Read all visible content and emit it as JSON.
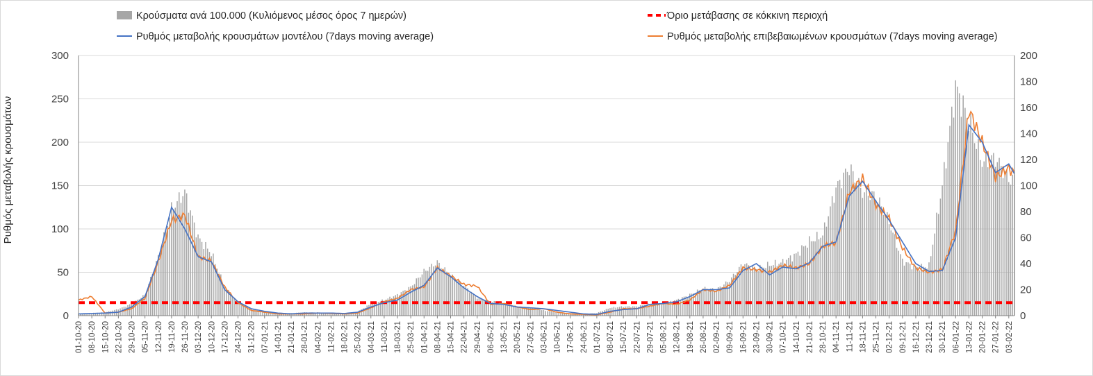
{
  "chart_data": {
    "type": "bar",
    "y_axis_title": "Ρυθμός μεταβολής κρουσμάτων",
    "left_axis": {
      "ylim": [
        0,
        300
      ],
      "ticks": [
        "0",
        "50",
        "100",
        "150",
        "200",
        "250",
        "300"
      ]
    },
    "right_axis": {
      "ylim": [
        0,
        200
      ],
      "ticks": [
        "0",
        "20",
        "40",
        "60",
        "80",
        "100",
        "120",
        "140",
        "160",
        "180",
        "200"
      ]
    },
    "grid": true,
    "legend_position": "top",
    "x_start": "01-10-20",
    "x_end": "06-02-22",
    "x_tick_labels": [
      "01-10-20",
      "08-10-20",
      "15-10-20",
      "22-10-20",
      "29-10-20",
      "05-11-20",
      "12-11-20",
      "19-11-20",
      "26-11-20",
      "03-12-20",
      "10-12-20",
      "17-12-20",
      "24-12-20",
      "31-12-20",
      "07-01-21",
      "14-01-21",
      "21-01-21",
      "28-01-21",
      "04-02-21",
      "11-02-21",
      "18-02-21",
      "25-02-21",
      "04-03-21",
      "11-03-21",
      "18-03-21",
      "25-03-21",
      "01-04-21",
      "08-04-21",
      "15-04-21",
      "22-04-21",
      "29-04-21",
      "06-05-21",
      "13-05-21",
      "20-05-21",
      "27-05-21",
      "03-06-21",
      "10-06-21",
      "17-06-21",
      "24-06-21",
      "01-07-21",
      "08-07-21",
      "15-07-21",
      "22-07-21",
      "29-07-21",
      "05-08-21",
      "12-08-21",
      "19-08-21",
      "26-08-21",
      "02-09-21",
      "09-09-21",
      "16-09-21",
      "23-09-21",
      "30-09-21",
      "07-10-21",
      "14-10-21",
      "21-10-21",
      "28-10-21",
      "04-11-21",
      "11-11-21",
      "18-11-21",
      "25-11-21",
      "02-12-21",
      "09-12-21",
      "16-12-21",
      "23-12-21",
      "30-12-21",
      "06-01-22",
      "13-01-22",
      "20-01-22",
      "27-01-22",
      "03-02-22"
    ],
    "series": [
      {
        "name": "Κρούσματα ανά 100.000 (Κυλιόμενος μέσος όρος 7 ημερών)",
        "kind": "bar",
        "axis": "right",
        "color": "#a6a6a6",
        "weekly_values": [
          1.5,
          2,
          2.5,
          5,
          9,
          16,
          45,
          82,
          95,
          60,
          48,
          22,
          10,
          5,
          3,
          2,
          2,
          2.5,
          2.5,
          2,
          2,
          3,
          9,
          12,
          16,
          22,
          34,
          41,
          31,
          23,
          14,
          11,
          9,
          7,
          6,
          4,
          2.5,
          2,
          1.5,
          2,
          6,
          7,
          7,
          9,
          9,
          12,
          16,
          21,
          20,
          27,
          40,
          36,
          39,
          41,
          47,
          57,
          62,
          98,
          114,
          95,
          92,
          72,
          42,
          37,
          38,
          100,
          176,
          150,
          118,
          121,
          105
        ]
      },
      {
        "name": "Ρυθμός μεταβολής κρουσμάτων μοντέλου (7days moving average)",
        "kind": "line",
        "axis": "left",
        "color": "#4472c4",
        "weekly_values": [
          2,
          2.5,
          3,
          4,
          10,
          22,
          65,
          125,
          100,
          68,
          62,
          30,
          16,
          8,
          5,
          3,
          2,
          3,
          3,
          3,
          2.5,
          4,
          10,
          15,
          18,
          27,
          35,
          55,
          45,
          32,
          22,
          14,
          13,
          10,
          9,
          8,
          6,
          4,
          2,
          1.5,
          5,
          7,
          8,
          13,
          14,
          16,
          22,
          30,
          30,
          32,
          52,
          60,
          47,
          56,
          54,
          61,
          80,
          85,
          138,
          155,
          132,
          110,
          85,
          60,
          51,
          52,
          90,
          220,
          200,
          165,
          175,
          148
        ]
      },
      {
        "name": "Ρυθμός μεταβολής επιβεβαιωμένων κρουσμάτων (7days moving average)",
        "kind": "line",
        "axis": "left",
        "color": "#ed7d31",
        "weekly_values": [
          18,
          22,
          3,
          4,
          8,
          20,
          62,
          110,
          116,
          68,
          63,
          33,
          15,
          6,
          4,
          2,
          2,
          2,
          3,
          2.5,
          2,
          3,
          9,
          16,
          20,
          30,
          33,
          55,
          46,
          36,
          34,
          13,
          14,
          10,
          7,
          8,
          4,
          2,
          1.5,
          1,
          4,
          8,
          8,
          11,
          14,
          13,
          18,
          30,
          28,
          35,
          55,
          53,
          50,
          58,
          55,
          60,
          80,
          84,
          143,
          158,
          128,
          112,
          78,
          55,
          50,
          53,
          98,
          238,
          200,
          160,
          170,
          155
        ]
      },
      {
        "name": "Όριο μετάβασης σε κόκκινη περιοχή",
        "kind": "threshold",
        "axis": "right",
        "color": "#ff0000",
        "value": 10
      }
    ]
  }
}
